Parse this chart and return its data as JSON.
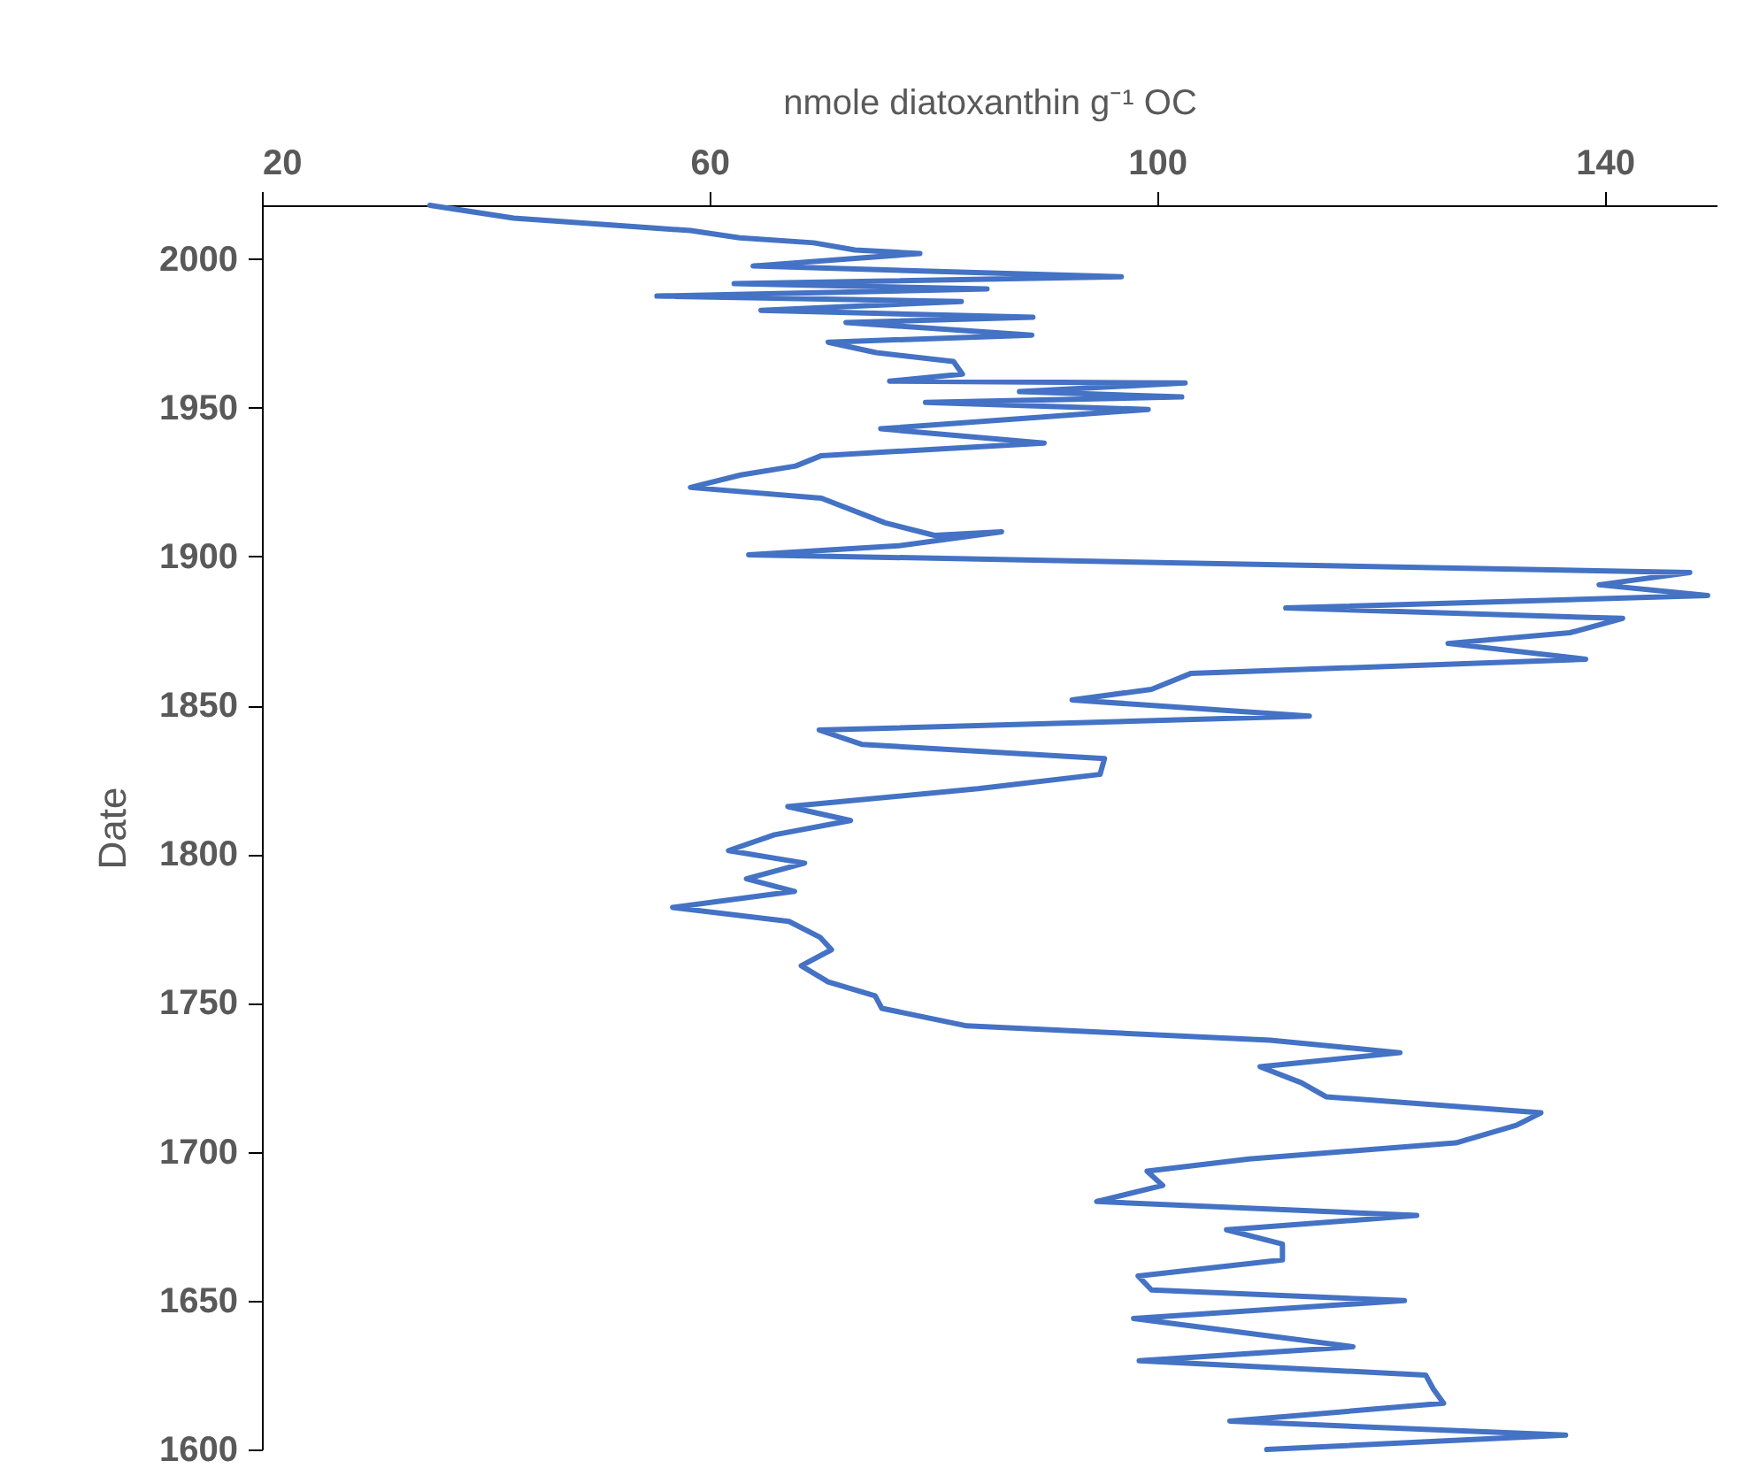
{
  "chart_data": {
    "type": "line",
    "xlabel": "nmole diatoxanthin g⁻¹ OC",
    "ylabel": "Date",
    "xlim": [
      20,
      150
    ],
    "xticks": [
      20,
      60,
      100,
      140
    ],
    "ylim": [
      1600,
      2018
    ],
    "yticks": [
      1600,
      1650,
      1700,
      1750,
      1800,
      1850,
      1900,
      1950,
      2000
    ],
    "grid": false,
    "line_style": "solid",
    "marker": "none",
    "series": [
      {
        "color": "#4472c4",
        "x": [
          35.0,
          42.5,
          58.3,
          62.7,
          69.3,
          73.0,
          78.8,
          72.5,
          63.9,
          96.8,
          62.2,
          84.8,
          55.3,
          82.5,
          64.6,
          88.9,
          72.2,
          88.8,
          70.6,
          74.9,
          81.8,
          82.6,
          76.1,
          102.5,
          87.7,
          102.2,
          79.3,
          99.2,
          75.3,
          89.9,
          70.0,
          67.7,
          62.8,
          58.3,
          70.0,
          75.7,
          80.1,
          86.1,
          76.9,
          63.5,
          147.6,
          139.5,
          149.2,
          111.5,
          141.6,
          136.9,
          126.0,
          138.3,
          103.0,
          99.5,
          92.4,
          113.6,
          69.8,
          73.6,
          95.3,
          94.9,
          84.0,
          67.0,
          72.6,
          65.8,
          61.7,
          68.5,
          63.3,
          67.6,
          56.7,
          67.1,
          69.9,
          70.9,
          68.2,
          70.6,
          74.8,
          75.4,
          83.0,
          110.1,
          121.7,
          109.2,
          112.9,
          115.1,
          134.3,
          132.1,
          126.7,
          108.2,
          99.1,
          100.5,
          94.6,
          123.2,
          106.2,
          111.2,
          111.2,
          98.3,
          99.5,
          122.1,
          97.9,
          117.5,
          98.4,
          124.0,
          124.7,
          125.6,
          106.5,
          136.5,
          109.8
        ],
        "values": [
          2018,
          2013.7,
          2009.5,
          2007.1,
          2005.4,
          2003,
          2001.8,
          2000,
          1997.6,
          1994,
          1991.7,
          1989.9,
          1987.5,
          1985.7,
          1982.7,
          1980.4,
          1978.6,
          1974.4,
          1972,
          1968.5,
          1965.5,
          1961.3,
          1958.9,
          1958.3,
          1955.4,
          1953.6,
          1951.8,
          1949.4,
          1942.9,
          1938.1,
          1933.9,
          1930.4,
          1927.4,
          1923.2,
          1919.6,
          1911.3,
          1907.1,
          1908.3,
          1903.6,
          1900.6,
          1894.6,
          1890.5,
          1886.9,
          1882.7,
          1879.2,
          1874.4,
          1870.8,
          1865.5,
          1860.7,
          1855.4,
          1851.8,
          1846.4,
          1841.7,
          1836.9,
          1832.1,
          1826.8,
          1822,
          1816,
          1811.3,
          1806.5,
          1801.2,
          1797,
          1791.7,
          1787.5,
          1782.1,
          1777.4,
          1772,
          1767.9,
          1762.5,
          1757.1,
          1752.4,
          1748.2,
          1742.3,
          1737.5,
          1733.3,
          1728.6,
          1723.2,
          1718.5,
          1713.1,
          1708.9,
          1703,
          1697.6,
          1693.5,
          1688.7,
          1683.3,
          1678.6,
          1673.8,
          1669,
          1663.7,
          1658.3,
          1653.6,
          1650,
          1644,
          1634.5,
          1629.8,
          1625,
          1620.2,
          1615.5,
          1609.5,
          1604.8,
          1600
        ]
      }
    ]
  }
}
